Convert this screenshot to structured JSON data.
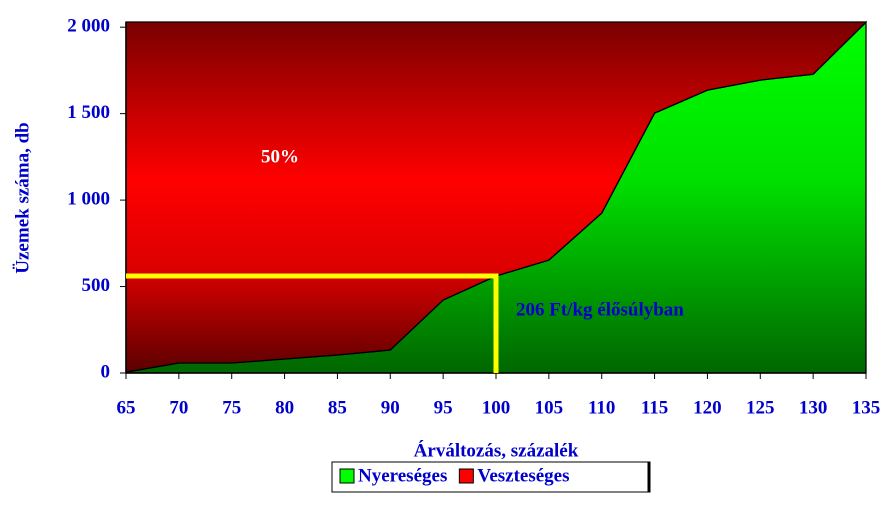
{
  "chart_data": {
    "type": "stacked_area",
    "xlabel": "Árváltozás, százalék",
    "ylabel": "Üzemek száma, db",
    "x": [
      65,
      70,
      75,
      80,
      85,
      90,
      95,
      100,
      105,
      110,
      115,
      120,
      125,
      130,
      135
    ],
    "series": [
      {
        "name": "Nyereséges",
        "color": "#00ff00",
        "values": [
          5,
          58,
          58,
          81,
          104,
          133,
          422,
          561,
          653,
          925,
          1503,
          1636,
          1694,
          1728,
          2029
        ]
      },
      {
        "name": "Veszteséges",
        "color": "#ff0000",
        "values": [
          2025,
          1972,
          1972,
          1949,
          1926,
          1897,
          1608,
          1469,
          1377,
          1105,
          527,
          394,
          336,
          302,
          1
        ]
      }
    ],
    "xlim": [
      65,
      135
    ],
    "xticks": [
      65,
      70,
      75,
      80,
      85,
      90,
      95,
      100,
      105,
      110,
      115,
      120,
      125,
      130,
      135
    ],
    "ylim": [
      0,
      2030
    ],
    "yticks": [
      0,
      500,
      {
        "value": 1000,
        "label": "1 000"
      },
      {
        "value": 1500,
        "label": "1 500"
      },
      {
        "value": 2000,
        "label": "2 000"
      }
    ],
    "annotations": [
      "50%",
      "206 Ft/kg élősúlyban"
    ],
    "reference": {
      "x": 100,
      "y": 561,
      "color": "#ffff00"
    },
    "legend": "bottom"
  }
}
